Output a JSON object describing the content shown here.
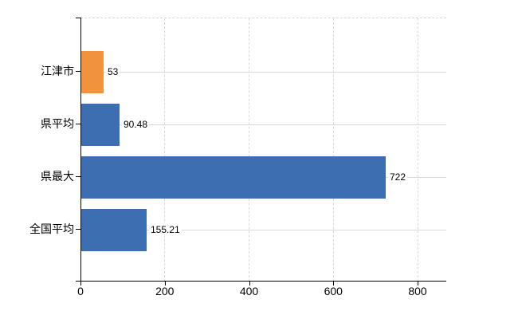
{
  "chart_data": {
    "type": "bar",
    "orientation": "horizontal",
    "title": "",
    "xlabel": "",
    "ylabel": "",
    "categories": [
      "江津市",
      "県平均",
      "県最大",
      "全国平均"
    ],
    "values": [
      53,
      90.48,
      722,
      155.21
    ],
    "value_labels": [
      "53",
      "90.48",
      "722",
      "155.21"
    ],
    "bar_colors": [
      "#F0933C",
      "#3D6EB1",
      "#3D6EB1",
      "#3D6EB1"
    ],
    "x_ticks": [
      0,
      200,
      400,
      600,
      800
    ],
    "x_tick_labels": [
      "0",
      "200",
      "400",
      "600",
      "800"
    ],
    "xlim": [
      0,
      868
    ],
    "legend": null,
    "grid": {
      "vertical": "dashed",
      "horizontal": "solid",
      "top_border": "dashed"
    }
  },
  "colors": {
    "bar_blue": "#3D6EB1",
    "bar_orange": "#F0933C",
    "gridline": "#D9D9D9",
    "axis": "#000000",
    "text": "#000000",
    "background": "#FFFFFF"
  }
}
